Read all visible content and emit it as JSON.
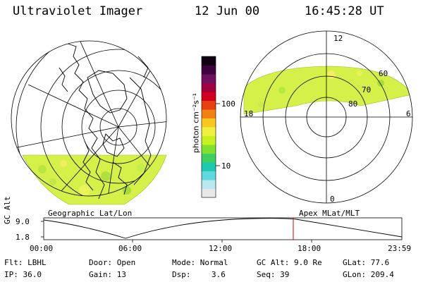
{
  "header": {
    "instrument": "Ultraviolet Imager",
    "date": "12 Jun 00",
    "time": "16:45:28 UT"
  },
  "geo_panel": {
    "label": "Geographic Lat/Lon"
  },
  "polar_panel": {
    "label": "Apex MLat/MLT",
    "mlt_labels": {
      "top": "12",
      "right": "6",
      "bottom": "0",
      "left": "18"
    },
    "lat_labels": [
      "60",
      "70",
      "80"
    ]
  },
  "colorbar": {
    "unit_label": "photon cm⁻²s⁻¹",
    "ticks": [
      "100",
      "10"
    ],
    "scale": "log",
    "colors": [
      "#e8e8e8",
      "#b8e8f0",
      "#60d8e0",
      "#20c8b0",
      "#40d060",
      "#80e030",
      "#c8f020",
      "#f0f040",
      "#f8c820",
      "#f08010",
      "#e84010",
      "#d00020",
      "#a00040",
      "#701060",
      "#400040",
      "#100010"
    ]
  },
  "altitude_plot": {
    "ylabel": "GC Alt",
    "yticks": [
      "9.0",
      "1.8"
    ],
    "xticks": [
      "00:00",
      "06:00",
      "12:00",
      "18:00",
      "23:59"
    ],
    "current_time_color": "#d00000"
  },
  "info": {
    "filter": "Flt: LBHL",
    "ip": "IP: 36.0",
    "door": "Door: Open",
    "gain": "Gain: 13",
    "mode": "Mode: Normal",
    "dsp_label": "Dsp:",
    "dsp_value": "3.6",
    "gc_alt": "GC Alt: 9.0 Re",
    "seq": "Seq: 39",
    "glat": "GLat:  77.6",
    "glon": "GLon: 209.4"
  }
}
